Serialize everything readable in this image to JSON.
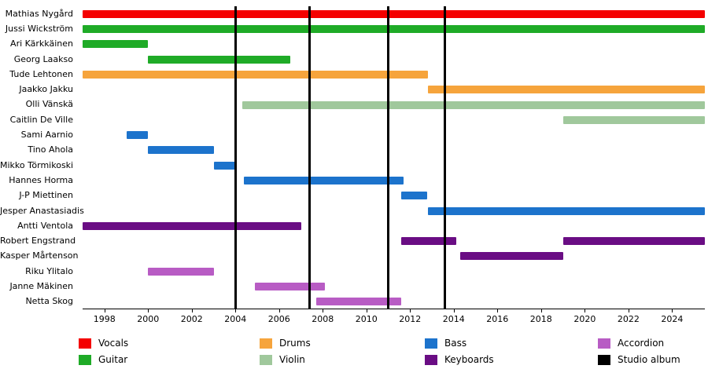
{
  "chart_data": {
    "type": "bar",
    "subtype": "gantt-timeline",
    "title": "",
    "x_domain": [
      1997,
      2025.5
    ],
    "x_ticks": [
      1998,
      2000,
      2002,
      2004,
      2006,
      2008,
      2010,
      2012,
      2014,
      2016,
      2018,
      2020,
      2022,
      2024
    ],
    "album_lines": [
      2004.0,
      2007.4,
      2011.0,
      2013.6
    ],
    "roles": {
      "Vocals": "#f40000",
      "Guitar": "#1fab27",
      "Drums": "#f6a43c",
      "Violin": "#a0c89c",
      "Bass": "#1c73cc",
      "Keyboards": "#6a0d84",
      "Accordion": "#b85cc4",
      "Studio album": "#000000"
    },
    "rows": [
      {
        "label": "Mathias Nygård",
        "role": "Vocals",
        "bars": [
          [
            1997,
            2025.5
          ]
        ]
      },
      {
        "label": "Jussi Wickström",
        "role": "Guitar",
        "bars": [
          [
            1997,
            2025.5
          ]
        ]
      },
      {
        "label": "Ari Kärkkäinen",
        "role": "Guitar",
        "bars": [
          [
            1997,
            2000
          ]
        ]
      },
      {
        "label": "Georg Laakso",
        "role": "Guitar",
        "bars": [
          [
            2000,
            2006.5
          ]
        ]
      },
      {
        "label": "Tude Lehtonen",
        "role": "Drums",
        "bars": [
          [
            1997,
            2012.8
          ]
        ]
      },
      {
        "label": "Jaakko Jakku",
        "role": "Drums",
        "bars": [
          [
            2012.8,
            2025.5
          ]
        ]
      },
      {
        "label": "Olli Vänskä",
        "role": "Violin",
        "bars": [
          [
            2004.3,
            2025.5
          ]
        ]
      },
      {
        "label": "Caitlin De Ville",
        "role": "Violin",
        "bars": [
          [
            2019,
            2025.5
          ]
        ]
      },
      {
        "label": "Sami Aarnio",
        "role": "Bass",
        "bars": [
          [
            1999,
            2000
          ]
        ]
      },
      {
        "label": "Tino Ahola",
        "role": "Bass",
        "bars": [
          [
            2000,
            2003
          ]
        ]
      },
      {
        "label": "Mikko Törmikoski",
        "role": "Bass",
        "bars": [
          [
            2003,
            2004
          ]
        ]
      },
      {
        "label": "Hannes Horma",
        "role": "Bass",
        "bars": [
          [
            2004.4,
            2011.7
          ]
        ]
      },
      {
        "label": "J-P Miettinen",
        "role": "Bass",
        "bars": [
          [
            2011.6,
            2012.8
          ]
        ]
      },
      {
        "label": "Jesper Anastasiadis",
        "role": "Bass",
        "bars": [
          [
            2012.8,
            2025.5
          ]
        ]
      },
      {
        "label": "Antti Ventola",
        "role": "Keyboards",
        "bars": [
          [
            1997,
            2007
          ]
        ]
      },
      {
        "label": "Robert Engstrand",
        "role": "Keyboards",
        "bars": [
          [
            2011.6,
            2014.1
          ],
          [
            2019,
            2025.5
          ]
        ]
      },
      {
        "label": "Kasper Mårtenson",
        "role": "Keyboards",
        "bars": [
          [
            2014.3,
            2019
          ]
        ]
      },
      {
        "label": "Riku Ylitalo",
        "role": "Accordion",
        "bars": [
          [
            2000,
            2003
          ]
        ]
      },
      {
        "label": "Janne Mäkinen",
        "role": "Accordion",
        "bars": [
          [
            2004.9,
            2008.1
          ]
        ]
      },
      {
        "label": "Netta Skog",
        "role": "Accordion",
        "bars": [
          [
            2007.7,
            2011.6
          ]
        ]
      }
    ],
    "legend": [
      {
        "label": "Vocals",
        "color": "#f40000"
      },
      {
        "label": "Guitar",
        "color": "#1fab27"
      },
      {
        "label": "Drums",
        "color": "#f6a43c"
      },
      {
        "label": "Violin",
        "color": "#a0c89c"
      },
      {
        "label": "Bass",
        "color": "#1c73cc"
      },
      {
        "label": "Keyboards",
        "color": "#6a0d84"
      },
      {
        "label": "Accordion",
        "color": "#b85cc4"
      },
      {
        "label": "Studio album",
        "color": "#000000"
      }
    ],
    "legend_position": "bottom",
    "grid": false
  }
}
